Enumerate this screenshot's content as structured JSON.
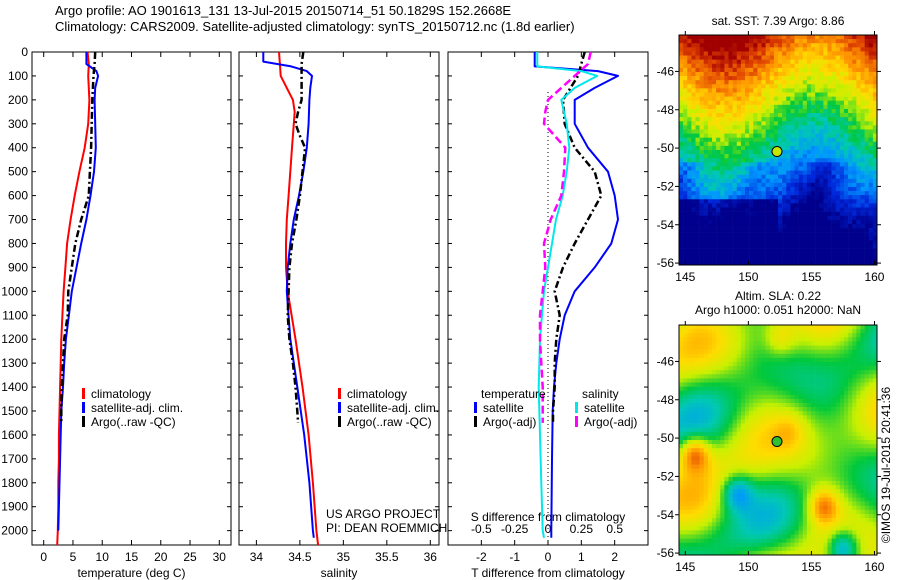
{
  "header": {
    "line1": "Argo profile: AO 1901613_131 13-Jul-2015 20150714_51 50.1829S 152.2668E",
    "line2": "Climatology: CARS2009. Satellite-adjusted climatology: synTS_20150712.nc (1.8d earlier)"
  },
  "colors": {
    "climatology": "#ff0000",
    "satellite": "#0000ff",
    "argo": "#000000",
    "sal_satellite": "#00e5e5",
    "sal_argo": "#ff00ff"
  },
  "chart_data": [
    {
      "type": "line",
      "title": "",
      "xlabel": "temperature (deg C)",
      "ylabel": "",
      "xlim": [
        -2,
        32
      ],
      "ylim": [
        2060,
        0
      ],
      "xticks": [
        0,
        5,
        10,
        15,
        20,
        25,
        30
      ],
      "yticks": [
        0,
        100,
        200,
        300,
        400,
        500,
        600,
        700,
        800,
        900,
        1000,
        1100,
        1200,
        1300,
        1400,
        1500,
        1600,
        1700,
        1800,
        1900,
        2000
      ],
      "legend": {
        "position": "center-left",
        "entries": [
          "climatology",
          "satellite-adj. clim.",
          "Argo(..raw -QC)"
        ]
      },
      "series": [
        {
          "name": "climatology",
          "color": "red",
          "depth": [
            0,
            50,
            100,
            200,
            300,
            400,
            500,
            600,
            700,
            800,
            900,
            1000,
            1100,
            1200,
            1300,
            1400,
            1500,
            1600,
            1700,
            1800,
            1900,
            2000,
            2060
          ],
          "values": [
            7.5,
            7.7,
            7.6,
            7.8,
            7.6,
            7.0,
            6.1,
            5.3,
            4.6,
            4.0,
            3.7,
            3.4,
            3.2,
            3.0,
            2.9,
            2.8,
            2.7,
            2.6,
            2.6,
            2.5,
            2.5,
            2.4,
            2.3
          ]
        },
        {
          "name": "satellite-adj. clim.",
          "color": "blue",
          "depth": [
            0,
            50,
            80,
            100,
            150,
            200,
            300,
            400,
            500,
            600,
            700,
            800,
            900,
            1000,
            1100,
            1200,
            1300,
            1400,
            1500,
            1600,
            1700,
            1800,
            1900,
            2000
          ],
          "values": [
            7.3,
            7.3,
            9.0,
            9.3,
            8.8,
            8.7,
            8.8,
            8.9,
            8.6,
            8.0,
            7.3,
            6.4,
            5.6,
            4.8,
            4.3,
            3.8,
            3.5,
            3.3,
            3.0,
            2.9,
            2.8,
            2.7,
            2.6,
            2.5
          ]
        },
        {
          "name": "Argo(..raw -QC)",
          "color": "black",
          "depth": [
            0,
            50,
            100,
            200,
            300,
            400,
            500,
            600,
            700,
            800,
            900,
            1000,
            1100,
            1200,
            1300,
            1400,
            1500,
            1550
          ],
          "values": [
            8.8,
            8.7,
            8.5,
            8.3,
            8.2,
            8.1,
            7.9,
            7.7,
            6.4,
            5.4,
            4.8,
            4.2,
            4.1,
            3.5,
            3.3,
            3.1,
            3.0,
            3.0
          ]
        }
      ]
    },
    {
      "type": "line",
      "title": "",
      "xlabel": "salinity",
      "xlim": [
        33.8,
        36.1
      ],
      "ylim": [
        2060,
        0
      ],
      "xticks": [
        34,
        34.5,
        35,
        35.5,
        36
      ],
      "legend": {
        "position": "center-right",
        "entries": [
          "climatology",
          "satellite-adj. clim.",
          "Argo(..raw -QC)"
        ]
      },
      "annotation": [
        "US ARGO PROJECT",
        "PI: DEAN ROEMMICH"
      ],
      "series": [
        {
          "name": "climatology",
          "color": "red",
          "depth": [
            0,
            50,
            100,
            150,
            200,
            250,
            300,
            400,
            500,
            600,
            700,
            800,
            900,
            1000,
            1200,
            1400,
            1600,
            1800,
            2000,
            2060
          ],
          "values": [
            34.26,
            34.27,
            34.28,
            34.35,
            34.42,
            34.44,
            34.43,
            34.41,
            34.39,
            34.37,
            34.35,
            34.34,
            34.34,
            34.36,
            34.45,
            34.53,
            34.6,
            34.65,
            34.69,
            34.71
          ]
        },
        {
          "name": "satellite-adj. clim.",
          "color": "blue",
          "depth": [
            0,
            40,
            60,
            80,
            100,
            150,
            200,
            300,
            400,
            500,
            600,
            700,
            800,
            900,
            1000,
            1200,
            1400,
            1600,
            1800,
            2000,
            2030
          ],
          "values": [
            34.08,
            34.08,
            34.4,
            34.58,
            34.64,
            34.62,
            34.61,
            34.6,
            34.58,
            34.54,
            34.49,
            34.43,
            34.39,
            34.36,
            34.35,
            34.39,
            34.47,
            34.55,
            34.61,
            34.65,
            34.66
          ]
        },
        {
          "name": "Argo(..raw -QC)",
          "color": "black",
          "depth": [
            0,
            50,
            100,
            200,
            250,
            300,
            350,
            400,
            500,
            600,
            700,
            800,
            900,
            1000,
            1100,
            1200,
            1300,
            1400,
            1500,
            1550
          ],
          "values": [
            34.54,
            34.52,
            34.52,
            34.52,
            34.48,
            34.45,
            34.5,
            34.56,
            34.53,
            34.5,
            34.46,
            34.41,
            34.38,
            34.37,
            34.36,
            34.38,
            34.42,
            34.45,
            34.47,
            34.48
          ]
        }
      ]
    },
    {
      "type": "line",
      "title": "",
      "xlabel": "T difference from climatology",
      "xlabel2": "S difference from climatology",
      "xlim": [
        -3,
        3
      ],
      "ylim": [
        2060,
        0
      ],
      "xticks": [
        -2,
        -1,
        0,
        1,
        2
      ],
      "xticks2_labels": [
        "-0.5",
        "-0.25",
        "0",
        "0.25",
        "0.5"
      ],
      "legend": {
        "position": "center",
        "temperature_title": "temperature",
        "salinity_title": "salinity",
        "entries": [
          "satellite",
          "Argo(-adj)",
          "satellite",
          "Argo(-adj)"
        ]
      },
      "series": [
        {
          "name": "temperature satellite",
          "color": "blue",
          "depth": [
            0,
            60,
            80,
            100,
            150,
            200,
            300,
            400,
            500,
            600,
            700,
            800,
            900,
            1000,
            1100,
            1200,
            1300,
            1400,
            1500,
            1700,
            2000,
            2030
          ],
          "values": [
            -0.4,
            -0.4,
            1.5,
            2.1,
            1.4,
            0.8,
            0.8,
            1.2,
            1.8,
            2.0,
            2.1,
            1.9,
            1.4,
            0.8,
            0.5,
            0.35,
            0.25,
            0.18,
            0.14,
            0.12,
            0.1,
            0.1
          ]
        },
        {
          "name": "temperature Argo(-adj)",
          "color": "black",
          "depth": [
            0,
            50,
            100,
            200,
            300,
            400,
            500,
            600,
            700,
            800,
            900,
            1000,
            1100,
            1200,
            1300,
            1400,
            1500,
            1550
          ],
          "values": [
            1.1,
            1.0,
            0.9,
            0.45,
            0.5,
            0.8,
            1.4,
            1.6,
            1.2,
            0.8,
            0.45,
            0.2,
            0.35,
            0.25,
            0.2,
            0.2,
            0.15,
            0.15
          ]
        },
        {
          "name": "salinity satellite",
          "color": "cyan",
          "depth": [
            0,
            60,
            80,
            100,
            150,
            200,
            300,
            400,
            500,
            600,
            700,
            800,
            900,
            1000,
            1200,
            1400,
            1600,
            1800,
            2000,
            2030
          ],
          "values": [
            -0.08,
            -0.08,
            0.25,
            0.37,
            0.2,
            0.1,
            0.14,
            0.16,
            0.14,
            0.11,
            0.06,
            0.03,
            0.0,
            -0.03,
            -0.06,
            -0.07,
            -0.06,
            -0.05,
            -0.04,
            -0.03
          ]
        },
        {
          "name": "salinity Argo(-adj)",
          "color": "magenta",
          "depth": [
            0,
            50,
            100,
            150,
            200,
            250,
            300,
            400,
            500,
            600,
            700,
            800,
            900,
            1000,
            1100,
            1200,
            1300,
            1400,
            1500,
            1550
          ],
          "values": [
            0.32,
            0.3,
            0.2,
            0.1,
            0.0,
            -0.02,
            -0.03,
            0.13,
            0.12,
            0.1,
            0.02,
            -0.03,
            -0.02,
            -0.04,
            -0.06,
            -0.06,
            -0.05,
            -0.04,
            -0.04,
            -0.04
          ]
        }
      ]
    },
    {
      "type": "heatmap",
      "title": "sat. SST: 7.39 Argo: 8.86",
      "xlim": [
        144.5,
        160.2
      ],
      "ylim": [
        -56.1,
        -44.1
      ],
      "xticks": [
        145,
        150,
        155,
        160
      ],
      "yticks": [
        -46,
        -48,
        -50,
        -52,
        -54,
        -56
      ],
      "marker": {
        "lon": 152.27,
        "lat": -50.18
      },
      "description": "SST field: warm (red/orange) north, cool (blue) south"
    },
    {
      "type": "heatmap",
      "title": "Altim. SLA: 0.22",
      "subtitle": "Argo h1000: 0.051 h2000: NaN",
      "xlim": [
        144.5,
        160.2
      ],
      "ylim": [
        -56.1,
        -44.1
      ],
      "xticks": [
        145,
        150,
        155,
        160
      ],
      "yticks": [
        -46,
        -48,
        -50,
        -52,
        -54,
        -56
      ],
      "marker": {
        "lon": 152.27,
        "lat": -50.18
      },
      "description": "Sea level anomaly field, mostly green/yellow with eddies"
    }
  ],
  "watermark": "©IMOS 19-Jul-2015 20:41:36"
}
